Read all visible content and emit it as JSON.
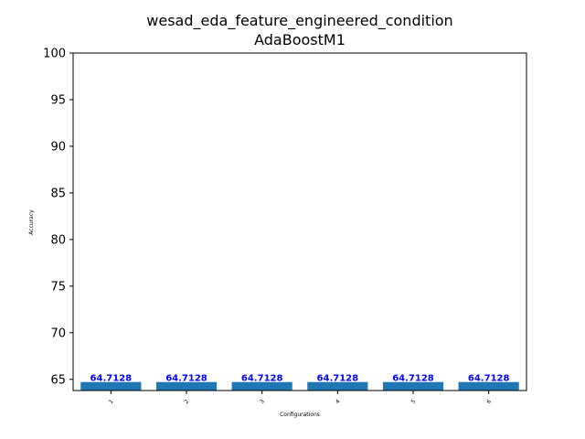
{
  "chart_data": {
    "type": "bar",
    "title": "wesad_eda_feature_engineered_condition",
    "subtitle": "AdaBoostM1",
    "xlabel": "Configurations",
    "ylabel": "Accuracy",
    "categories": [
      "1",
      "2",
      "3",
      "4",
      "5",
      "6"
    ],
    "values": [
      64.7128,
      64.7128,
      64.7128,
      64.7128,
      64.7128,
      64.7128
    ],
    "data_labels": [
      "64.7128",
      "64.7128",
      "64.7128",
      "64.7128",
      "64.7128",
      "64.7128"
    ],
    "ylim": [
      63.8,
      100
    ],
    "yticks": [
      "65",
      "70",
      "75",
      "80",
      "85",
      "90",
      "95",
      "100"
    ],
    "grid": false,
    "legend": "none",
    "colors": {
      "bar": "#1f77b4",
      "data_label": "#0000ff",
      "axis": "#000000"
    }
  }
}
